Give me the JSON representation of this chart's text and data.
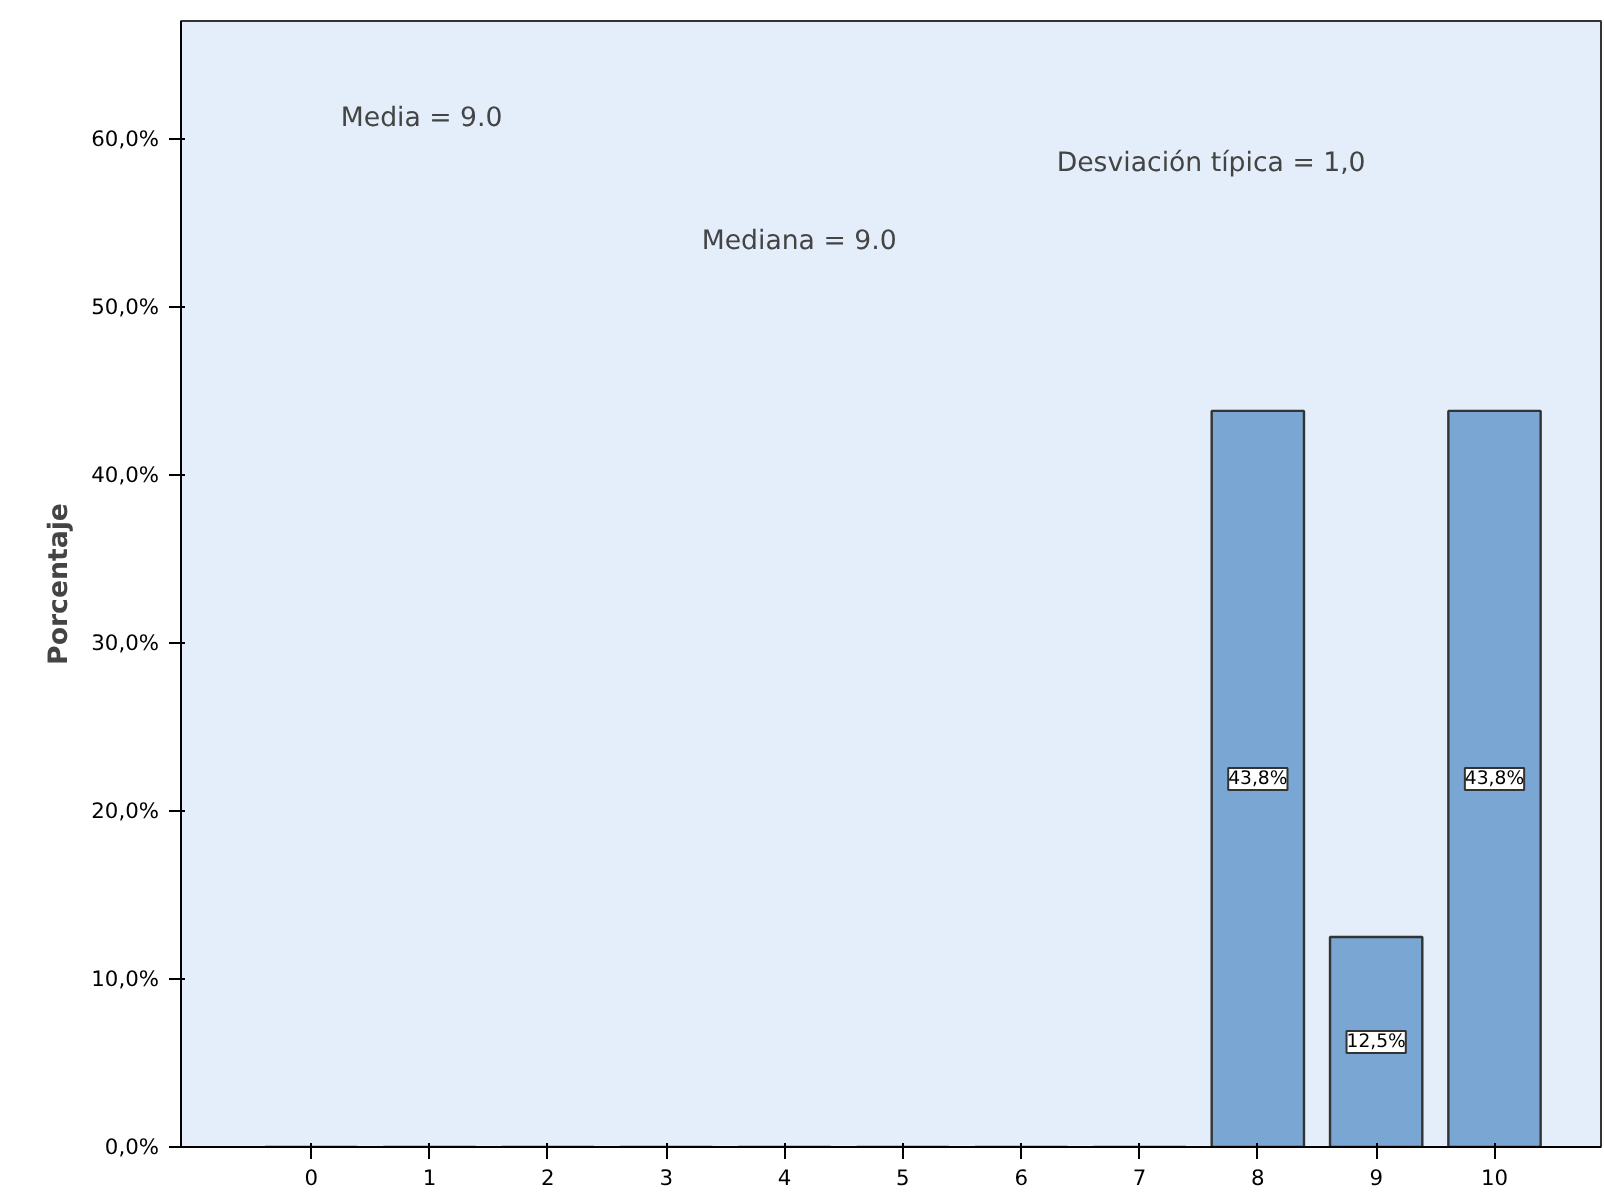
{
  "chart_data": {
    "type": "bar",
    "ylabel": "Porcentaje",
    "categories": [
      "0",
      "1",
      "2",
      "3",
      "4",
      "5",
      "6",
      "7",
      "8",
      "9",
      "10"
    ],
    "values": [
      0,
      0,
      0,
      0,
      0,
      0,
      0,
      0,
      43.8,
      12.5,
      43.8
    ],
    "value_labels": [
      null,
      null,
      null,
      null,
      null,
      null,
      null,
      null,
      "43,8%",
      "12,5%",
      "43,8%"
    ],
    "color": "#79a6d2",
    "ylim": [
      0,
      67
    ],
    "yticks": [
      {
        "value": 0,
        "label": "0,0%"
      },
      {
        "value": 10,
        "label": "10,0%"
      },
      {
        "value": 20,
        "label": "20,0%"
      },
      {
        "value": 30,
        "label": "30,0%"
      },
      {
        "value": 40,
        "label": "40,0%"
      },
      {
        "value": 50,
        "label": "50,0%"
      },
      {
        "value": 60,
        "label": "60,0%"
      }
    ],
    "annotations": [
      "Media = 9.0",
      "Desviación típica = 1,0",
      "Mediana = 9.0"
    ],
    "grid": false
  }
}
